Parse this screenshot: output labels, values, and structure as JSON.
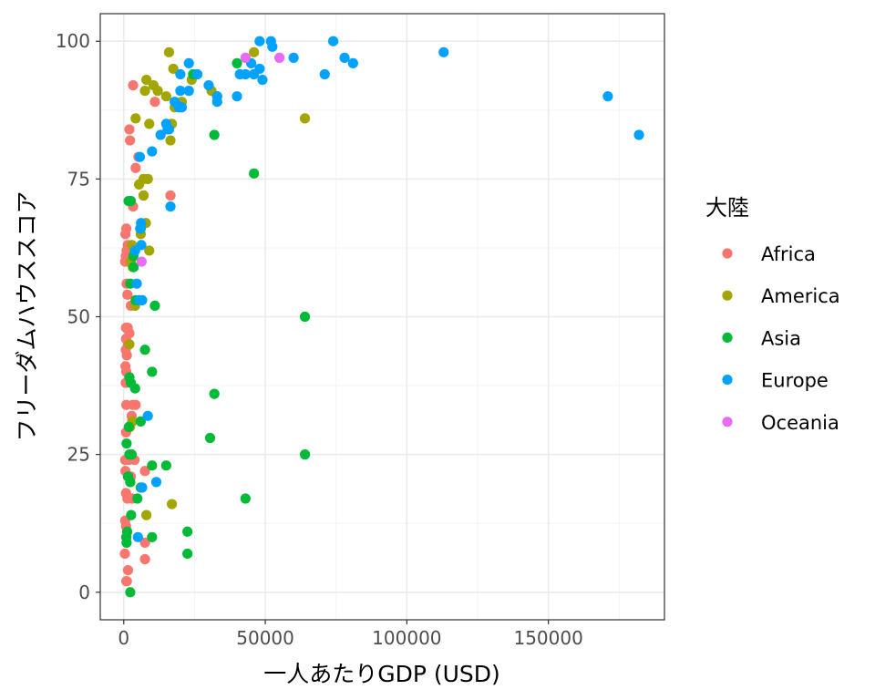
{
  "chart_data": {
    "type": "scatter",
    "title": "",
    "xlabel": "一人あたりGDP (USD)",
    "ylabel": "フリーダムハウススコア",
    "xlim": [
      -8300,
      191000
    ],
    "ylim": [
      -5,
      105
    ],
    "x_ticks": [
      0,
      50000,
      100000,
      150000
    ],
    "x_tick_labels": [
      "0",
      "50000",
      "100000",
      "150000"
    ],
    "y_ticks": [
      0,
      25,
      50,
      75,
      100
    ],
    "y_tick_labels": [
      "0",
      "25",
      "50",
      "75",
      "100"
    ],
    "grid": true,
    "legend": {
      "title": "大陸",
      "position": "right"
    },
    "series": [
      {
        "name": "Africa",
        "color": "#F8766D",
        "points": [
          [
            3300,
            92
          ],
          [
            11000,
            89
          ],
          [
            2000,
            84
          ],
          [
            2200,
            82
          ],
          [
            4200,
            77
          ],
          [
            5200,
            79
          ],
          [
            16500,
            72
          ],
          [
            7000,
            72
          ],
          [
            3300,
            70
          ],
          [
            900,
            66
          ],
          [
            600,
            65
          ],
          [
            1400,
            63
          ],
          [
            1000,
            62
          ],
          [
            2800,
            62
          ],
          [
            700,
            61
          ],
          [
            1200,
            60
          ],
          [
            500,
            60
          ],
          [
            1000,
            56
          ],
          [
            1300,
            54
          ],
          [
            2500,
            52
          ],
          [
            1400,
            48
          ],
          [
            800,
            48
          ],
          [
            2000,
            47
          ],
          [
            800,
            46
          ],
          [
            1500,
            45
          ],
          [
            700,
            44
          ],
          [
            1100,
            43
          ],
          [
            600,
            41
          ],
          [
            900,
            40
          ],
          [
            700,
            38
          ],
          [
            900,
            34
          ],
          [
            3200,
            34
          ],
          [
            4200,
            34
          ],
          [
            2800,
            32
          ],
          [
            3000,
            31
          ],
          [
            800,
            29
          ],
          [
            500,
            24
          ],
          [
            1700,
            24
          ],
          [
            3800,
            24
          ],
          [
            600,
            22
          ],
          [
            7500,
            22
          ],
          [
            2500,
            21
          ],
          [
            2300,
            20
          ],
          [
            800,
            18
          ],
          [
            1300,
            17
          ],
          [
            3000,
            17
          ],
          [
            500,
            13
          ],
          [
            800,
            12
          ],
          [
            900,
            10
          ],
          [
            400,
            7
          ],
          [
            7500,
            9
          ],
          [
            7500,
            6
          ],
          [
            1500,
            4
          ],
          [
            900,
            2
          ],
          [
            1100,
            2
          ]
        ]
      },
      {
        "name": "America",
        "color": "#A3A500",
        "points": [
          [
            16000,
            98
          ],
          [
            46000,
            98
          ],
          [
            17500,
            95
          ],
          [
            15000,
            90
          ],
          [
            7500,
            91
          ],
          [
            8000,
            93
          ],
          [
            10500,
            92
          ],
          [
            12000,
            91
          ],
          [
            20500,
            89
          ],
          [
            24000,
            93
          ],
          [
            18000,
            88
          ],
          [
            4200,
            86
          ],
          [
            9000,
            85
          ],
          [
            17000,
            85
          ],
          [
            16500,
            82
          ],
          [
            64000,
            86
          ],
          [
            7000,
            75
          ],
          [
            8500,
            75
          ],
          [
            5400,
            74
          ],
          [
            7000,
            72
          ],
          [
            7800,
            67
          ],
          [
            6000,
            65
          ],
          [
            2900,
            63
          ],
          [
            9000,
            62
          ],
          [
            3800,
            62
          ],
          [
            2500,
            60
          ],
          [
            3200,
            59
          ],
          [
            4000,
            52
          ],
          [
            2000,
            45
          ],
          [
            3000,
            31
          ],
          [
            2200,
            30
          ],
          [
            17000,
            16
          ],
          [
            8000,
            14
          ],
          [
            31000,
            91
          ],
          [
            33000,
            90
          ]
        ]
      },
      {
        "name": "Asia",
        "color": "#00BA38",
        "points": [
          [
            40000,
            96
          ],
          [
            32000,
            83
          ],
          [
            46000,
            76
          ],
          [
            1700,
            71
          ],
          [
            2500,
            71
          ],
          [
            6000,
            66
          ],
          [
            3400,
            61
          ],
          [
            3500,
            59
          ],
          [
            2300,
            56
          ],
          [
            4200,
            53
          ],
          [
            11000,
            52
          ],
          [
            64000,
            50
          ],
          [
            7500,
            44
          ],
          [
            2000,
            39
          ],
          [
            2500,
            38
          ],
          [
            10000,
            40
          ],
          [
            4000,
            37
          ],
          [
            32000,
            36
          ],
          [
            6000,
            31
          ],
          [
            1800,
            30
          ],
          [
            30500,
            28
          ],
          [
            64000,
            25
          ],
          [
            2000,
            25
          ],
          [
            2800,
            25
          ],
          [
            10000,
            23
          ],
          [
            15000,
            23
          ],
          [
            1500,
            21
          ],
          [
            2300,
            20
          ],
          [
            6000,
            19
          ],
          [
            4800,
            17
          ],
          [
            43000,
            17
          ],
          [
            2600,
            14
          ],
          [
            22500,
            11
          ],
          [
            1200,
            11
          ],
          [
            10000,
            10
          ],
          [
            900,
            10
          ],
          [
            1000,
            9
          ],
          [
            22500,
            7
          ],
          [
            2300,
            0
          ],
          [
            1000,
            27
          ],
          [
            24500,
            94
          ]
        ]
      },
      {
        "name": "Europe",
        "color": "#00A2FF",
        "points": [
          [
            48000,
            100
          ],
          [
            52000,
            100
          ],
          [
            74000,
            100
          ],
          [
            113000,
            98
          ],
          [
            52500,
            99
          ],
          [
            60000,
            97
          ],
          [
            78000,
            97
          ],
          [
            81000,
            96
          ],
          [
            45000,
            96
          ],
          [
            48000,
            95
          ],
          [
            23000,
            96
          ],
          [
            71000,
            94
          ],
          [
            20000,
            94
          ],
          [
            26000,
            94
          ],
          [
            41000,
            94
          ],
          [
            43000,
            94
          ],
          [
            46000,
            94
          ],
          [
            49000,
            93
          ],
          [
            30000,
            92
          ],
          [
            20000,
            91
          ],
          [
            23000,
            91
          ],
          [
            40000,
            90
          ],
          [
            33000,
            90
          ],
          [
            33000,
            89
          ],
          [
            171000,
            90
          ],
          [
            18000,
            89
          ],
          [
            19500,
            88
          ],
          [
            20500,
            88
          ],
          [
            15000,
            85
          ],
          [
            15500,
            84
          ],
          [
            16000,
            84
          ],
          [
            13000,
            83
          ],
          [
            182000,
            83
          ],
          [
            10000,
            80
          ],
          [
            5700,
            79
          ],
          [
            16500,
            70
          ],
          [
            6100,
            67
          ],
          [
            5800,
            66
          ],
          [
            6200,
            63
          ],
          [
            4000,
            62
          ],
          [
            4600,
            56
          ],
          [
            5500,
            53
          ],
          [
            6500,
            53
          ],
          [
            8500,
            32
          ],
          [
            11500,
            20
          ],
          [
            6500,
            19
          ],
          [
            5000,
            10
          ]
        ]
      },
      {
        "name": "Oceania",
        "color": "#E76BF3",
        "points": [
          [
            43000,
            97
          ],
          [
            55000,
            97
          ],
          [
            6300,
            60
          ]
        ]
      }
    ]
  }
}
